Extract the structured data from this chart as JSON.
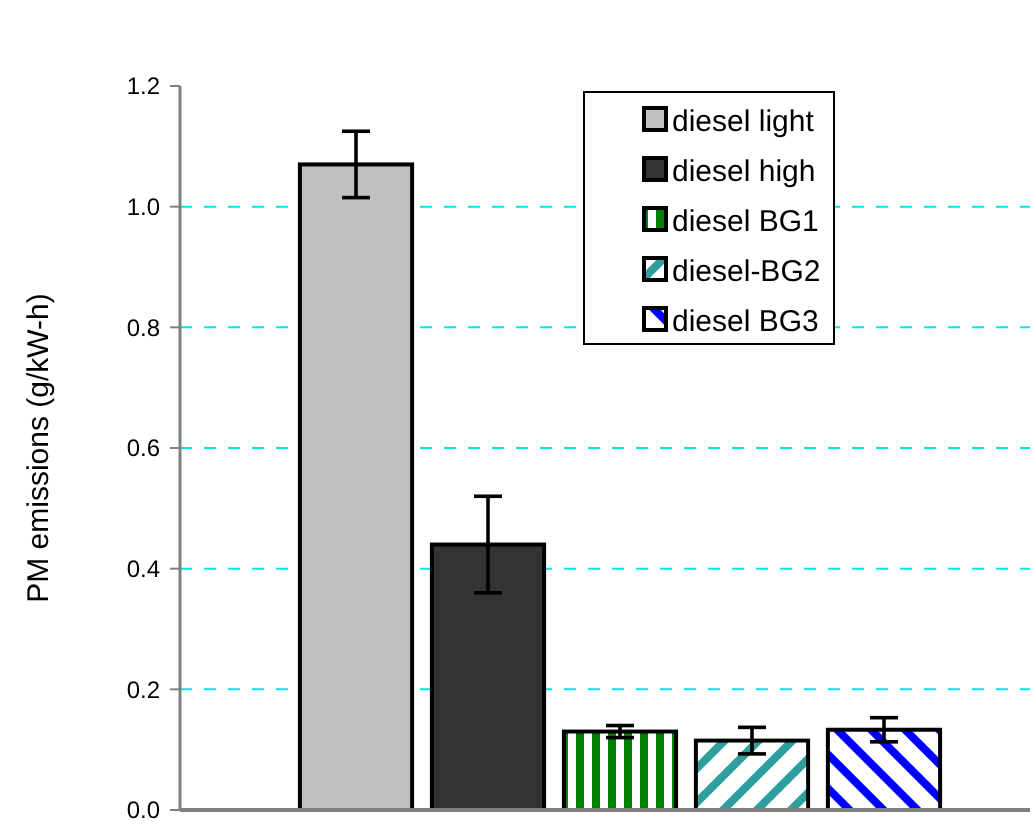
{
  "chart_data": {
    "type": "bar",
    "ylabel": "PM emissions (g/kW-h)",
    "categories": [
      null
    ],
    "series": [
      {
        "name": "diesel light",
        "color": "#c0c0c0",
        "values": [
          1.07
        ],
        "errors": [
          0.055
        ]
      },
      {
        "name": "diesel high",
        "color": "#333333",
        "values": [
          0.44
        ],
        "errors": [
          0.08
        ]
      },
      {
        "name": "diesel BG1",
        "color": "#008000",
        "values": [
          0.13
        ],
        "errors": [
          0.01
        ]
      },
      {
        "name": "diesel-BG2",
        "color": "#2e9e9e",
        "values": [
          0.115
        ],
        "errors": [
          0.022
        ]
      },
      {
        "name": "diesel BG3",
        "color": "#0000ff",
        "values": [
          0.133
        ],
        "errors": [
          0.02
        ]
      }
    ],
    "ylim": [
      0,
      1.2
    ],
    "yticks": [
      {
        "value": 0,
        "label": "0.0"
      },
      0.2,
      0.4,
      0.6,
      0.8,
      {
        "value": 1,
        "label": "1.0"
      },
      {
        "value": 1.2,
        "label": "1.2"
      }
    ],
    "grid": "y",
    "legend": "top right"
  }
}
